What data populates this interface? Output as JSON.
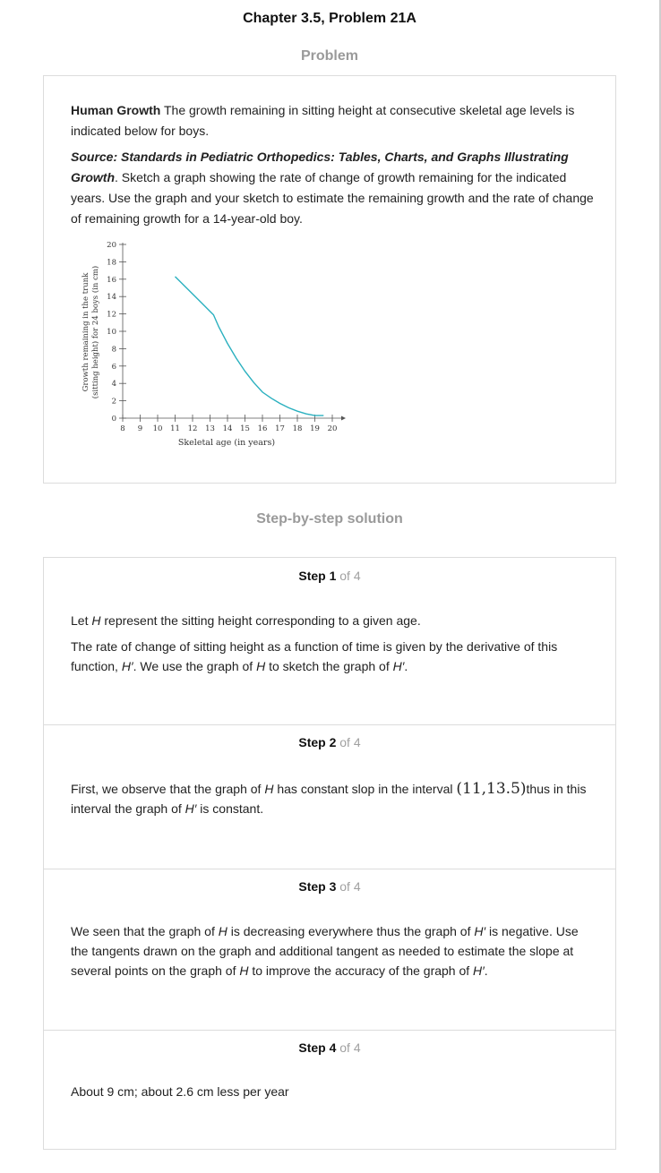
{
  "page_title": "Chapter 3.5, Problem 21A",
  "problem_heading": "Problem",
  "problem": {
    "lead_bold": "Human Growth",
    "lead_text": " The growth remaining in sitting height at consecutive skeletal age levels is indicated below for boys.",
    "source_bold": "Source: Standards in Pediatric Orthopedics: Tables, Charts, and Graphs Illustrating",
    "source_bold2": "Growth",
    "source_text": ". Sketch a graph showing the rate of change of growth remaining for the indicated years. Use the graph and your sketch to estimate the remaining growth and the rate of change of remaining growth for a 14-year-old boy."
  },
  "chart_data": {
    "type": "line",
    "xlabel": "Skeletal age (in years)",
    "ylabel_line1": "Growth remaining in the trunk",
    "ylabel_line2": "(sitting height) for 24 boys (in cm)",
    "xlim": [
      8,
      20
    ],
    "ylim": [
      0,
      20
    ],
    "x_ticks": [
      "8",
      "9",
      "10",
      "11",
      "12",
      "13",
      "14",
      "15",
      "16",
      "17",
      "18",
      "19",
      "20"
    ],
    "y_ticks": [
      "0",
      "2",
      "4",
      "6",
      "8",
      "10",
      "12",
      "14",
      "16",
      "18",
      "20"
    ],
    "series": [
      {
        "x": [
          11,
          11.5,
          12,
          12.5,
          13,
          13.2,
          13.5,
          14,
          14.5,
          15,
          15.5,
          16,
          16.5,
          17,
          17.5,
          18,
          18.5,
          19,
          19.5
        ],
        "y": [
          16.3,
          15.3,
          14.3,
          13.3,
          12.3,
          11.9,
          10.5,
          8.6,
          6.9,
          5.4,
          4.1,
          3.0,
          2.3,
          1.7,
          1.2,
          0.8,
          0.5,
          0.3,
          0.3
        ]
      }
    ],
    "line_color": "#2ab0bf",
    "grid": false
  },
  "solution_heading": "Step-by-step solution",
  "step_of": "of 4",
  "steps": [
    {
      "label": "Step 1",
      "p1": [
        "Let ",
        "H",
        " represent the sitting height corresponding to a given age."
      ],
      "p2": [
        "The rate of change of sitting height as a function of time is given by the derivative of this function, ",
        "H′",
        ". We use the graph of ",
        "H",
        " to sketch the graph of ",
        "H′",
        "."
      ]
    },
    {
      "label": "Step 2",
      "p1": [
        "First, we observe that the graph of ",
        "H",
        " has constant slop in the interval ",
        "(11,13.5)",
        "thus in this interval the graph of ",
        "H′",
        " is constant."
      ]
    },
    {
      "label": "Step 3",
      "p1": [
        "We seen that the graph of ",
        "H",
        " is decreasing everywhere thus the graph of ",
        "H′",
        " is negative. Use the tangents drawn on the graph and additional tangent as needed to estimate the slope at several points on the graph of ",
        "H",
        " to improve the accuracy of the graph of ",
        "H′",
        "."
      ]
    },
    {
      "label": "Step 4",
      "p1": [
        "About 9 cm; about 2.6 cm less per year"
      ]
    }
  ]
}
